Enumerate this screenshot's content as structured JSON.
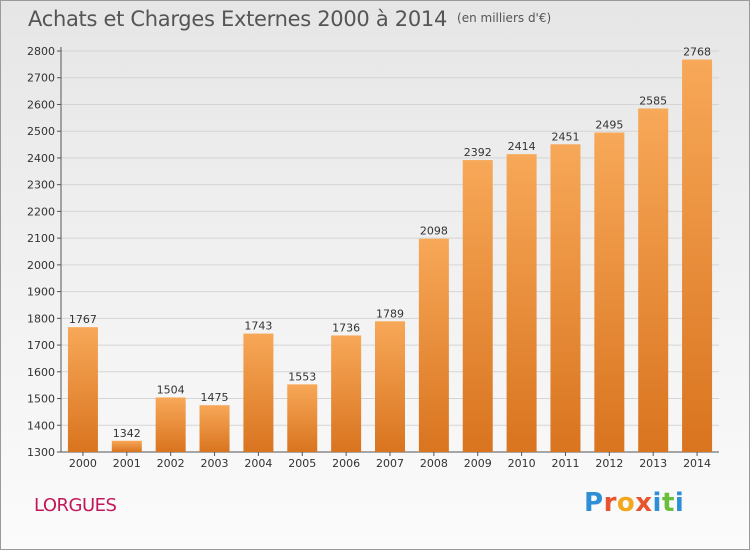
{
  "header": {
    "title": "Achats et Charges Externes 2000 à 2014",
    "subtitle": "(en milliers d'€)"
  },
  "footer": {
    "place": "LORGUES",
    "logo_text": "Proxiti",
    "logo_colors": [
      "#2f8fd6",
      "#e8542f",
      "#f2a81d",
      "#e8542f",
      "#2f8fd6",
      "#6abf3a",
      "#2f8fd6"
    ]
  },
  "colors": {
    "bar_light": "#f7a858",
    "bar_dark": "#d9741f",
    "grid": "#d5d5d5",
    "axis": "#555555",
    "text": "#333333"
  },
  "chart_data": {
    "type": "bar",
    "title": "Achats et Charges Externes 2000 à 2014",
    "subtitle": "(en milliers d'€)",
    "categories": [
      "2000",
      "2001",
      "2002",
      "2003",
      "2004",
      "2005",
      "2006",
      "2007",
      "2008",
      "2009",
      "2010",
      "2011",
      "2012",
      "2013",
      "2014"
    ],
    "values": [
      1767,
      1342,
      1504,
      1475,
      1743,
      1553,
      1736,
      1789,
      2098,
      2392,
      2414,
      2451,
      2495,
      2585,
      2768
    ],
    "ylim": [
      1300,
      2800
    ],
    "yticks": [
      1300,
      1400,
      1500,
      1600,
      1700,
      1800,
      1900,
      2000,
      2100,
      2200,
      2300,
      2400,
      2500,
      2600,
      2700,
      2800
    ],
    "grid": true,
    "data_labels": true,
    "xlabel": "",
    "ylabel": ""
  }
}
